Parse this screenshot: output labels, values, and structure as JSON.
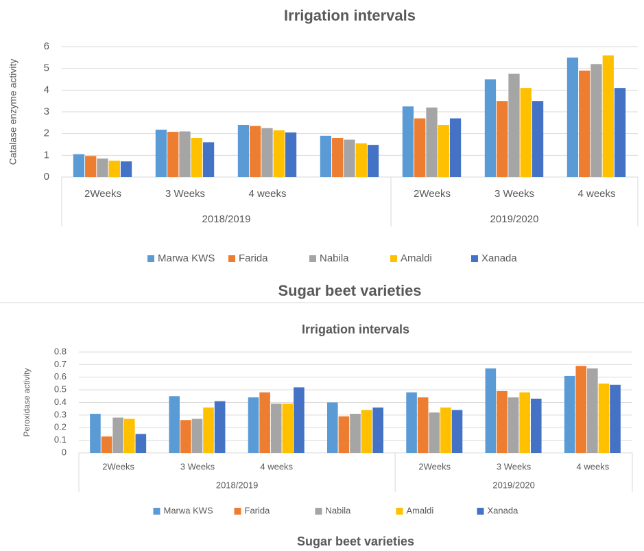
{
  "chart_data": [
    {
      "type": "bar",
      "title": "Irrigation intervals",
      "x_label": "Sugar beet varieties",
      "y_label": "Catalase  enzyme activity",
      "groups": [
        {
          "name": "2018/2019",
          "categories": [
            "2Weeks",
            "3 Weeks",
            "4 weeks",
            null
          ]
        },
        {
          "name": "2019/2020",
          "categories": [
            "2Weeks",
            "3 Weeks",
            "4 weeks"
          ]
        }
      ],
      "series": [
        {
          "name": "Marwa KWS",
          "color": "#5b9bd5",
          "values": [
            1.05,
            2.18,
            2.4,
            1.9,
            3.25,
            4.5,
            5.5
          ]
        },
        {
          "name": "Farida",
          "color": "#ed7d31",
          "values": [
            0.97,
            2.08,
            2.35,
            1.8,
            2.7,
            3.5,
            4.9
          ]
        },
        {
          "name": "Nabila",
          "color": "#a5a5a5",
          "values": [
            0.85,
            2.1,
            2.25,
            1.72,
            3.2,
            4.75,
            5.2
          ]
        },
        {
          "name": "Amaldi",
          "color": "#ffc000",
          "values": [
            0.75,
            1.8,
            2.15,
            1.55,
            2.4,
            4.1,
            5.6
          ]
        },
        {
          "name": "Xanada",
          "color": "#4472c4",
          "values": [
            0.72,
            1.6,
            2.05,
            1.48,
            2.7,
            3.5,
            4.1
          ]
        }
      ],
      "ylim": [
        0,
        6
      ],
      "yticks": [
        0,
        1,
        2,
        3,
        4,
        5,
        6
      ],
      "grid": true,
      "legend": "bottom"
    },
    {
      "type": "bar",
      "title": "Irrigation intervals",
      "x_label": "Sugar beet varieties",
      "y_label": "Peroxidase activity",
      "groups": [
        {
          "name": "2018/2019",
          "categories": [
            "2Weeks",
            "3 Weeks",
            "4 weeks",
            null
          ]
        },
        {
          "name": "2019/2020",
          "categories": [
            "2Weeks",
            "3 Weeks",
            "4 weeks"
          ]
        }
      ],
      "series": [
        {
          "name": "Marwa KWS",
          "color": "#5b9bd5",
          "values": [
            0.31,
            0.45,
            0.44,
            0.4,
            0.48,
            0.67,
            0.61
          ]
        },
        {
          "name": "Farida",
          "color": "#ed7d31",
          "values": [
            0.13,
            0.26,
            0.48,
            0.29,
            0.44,
            0.49,
            0.69
          ]
        },
        {
          "name": "Nabila",
          "color": "#a5a5a5",
          "values": [
            0.28,
            0.27,
            0.39,
            0.31,
            0.32,
            0.44,
            0.67
          ]
        },
        {
          "name": "Amaldi",
          "color": "#ffc000",
          "values": [
            0.27,
            0.36,
            0.39,
            0.34,
            0.36,
            0.48,
            0.55
          ]
        },
        {
          "name": "Xanada",
          "color": "#4472c4",
          "values": [
            0.15,
            0.41,
            0.52,
            0.36,
            0.34,
            0.43,
            0.54
          ]
        }
      ],
      "ylim": [
        0,
        0.8
      ],
      "yticks": [
        0,
        0.1,
        0.2,
        0.3,
        0.4,
        0.5,
        0.6,
        0.7,
        0.8
      ],
      "grid": true,
      "legend": "bottom"
    }
  ]
}
